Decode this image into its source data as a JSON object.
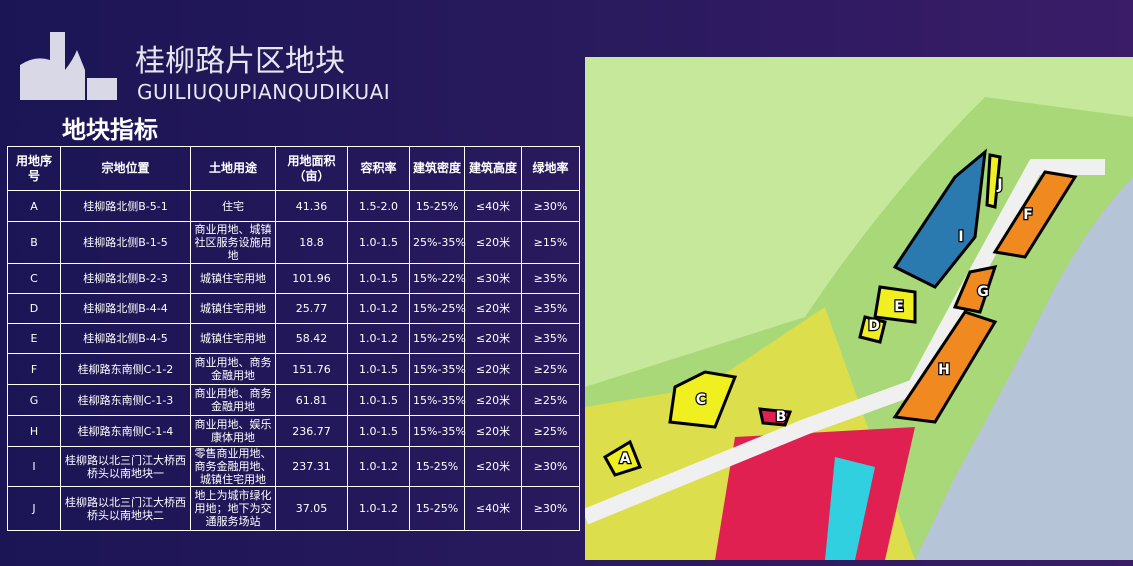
{
  "header": {
    "title": "桂柳路片区地块",
    "subtitle": "GUILIUQUPIANQUDIKUAI"
  },
  "section_title": "地块指标",
  "table": {
    "columns": [
      "用地序号",
      "宗地位置",
      "土地用途",
      "用地面积（亩）",
      "容积率",
      "建筑密度",
      "建筑高度",
      "绿地率"
    ],
    "rows": [
      [
        "A",
        "桂柳路北侧B-5-1",
        "住宅",
        "41.36",
        "1.5-2.0",
        "15-25%",
        "≤40米",
        "≥30%"
      ],
      [
        "B",
        "桂柳路北侧B-1-5",
        "商业用地、城镇社区服务设施用地",
        "18.8",
        "1.0-1.5",
        "25%-35%",
        "≤20米",
        "≥15%"
      ],
      [
        "C",
        "桂柳路北侧B-2-3",
        "城镇住宅用地",
        "101.96",
        "1.0-1.5",
        "15%-22%",
        "≤30米",
        "≥35%"
      ],
      [
        "D",
        "桂柳路北侧B-4-4",
        "城镇住宅用地",
        "25.77",
        "1.0-1.2",
        "15%-25%",
        "≤20米",
        "≥35%"
      ],
      [
        "E",
        "桂柳路北侧B-4-5",
        "城镇住宅用地",
        "58.42",
        "1.0-1.2",
        "15%-25%",
        "≤20米",
        "≥35%"
      ],
      [
        "F",
        "桂柳路东南侧C-1-2",
        "商业用地、商务金融用地",
        "151.76",
        "1.0-1.5",
        "15%-35%",
        "≤20米",
        "≥25%"
      ],
      [
        "G",
        "桂柳路东南侧C-1-3",
        "商业用地、商务金融用地",
        "61.81",
        "1.0-1.5",
        "15%-35%",
        "≤20米",
        "≥25%"
      ],
      [
        "H",
        "桂柳路东南侧C-1-4",
        "商业用地、娱乐康体用地",
        "236.77",
        "1.0-1.5",
        "15%-35%",
        "≤20米",
        "≥25%"
      ],
      [
        "I",
        "桂柳路以北三门江大桥西桥头以南地块一",
        "零售商业用地、商务金融用地、城镇住宅用地",
        "237.31",
        "1.0-1.2",
        "15-25%",
        "≤20米",
        "≥30%"
      ],
      [
        "J",
        "桂柳路以北三门江大桥西桥头以南地块二",
        "地上为城市绿化用地；地下为交通服务场站",
        "37.05",
        "1.0-1.2",
        "15-25%",
        "≤40米",
        "≥30%"
      ]
    ]
  },
  "map": {
    "labels": [
      "A",
      "B",
      "C",
      "D",
      "E",
      "F",
      "G",
      "H",
      "I",
      "J"
    ]
  }
}
